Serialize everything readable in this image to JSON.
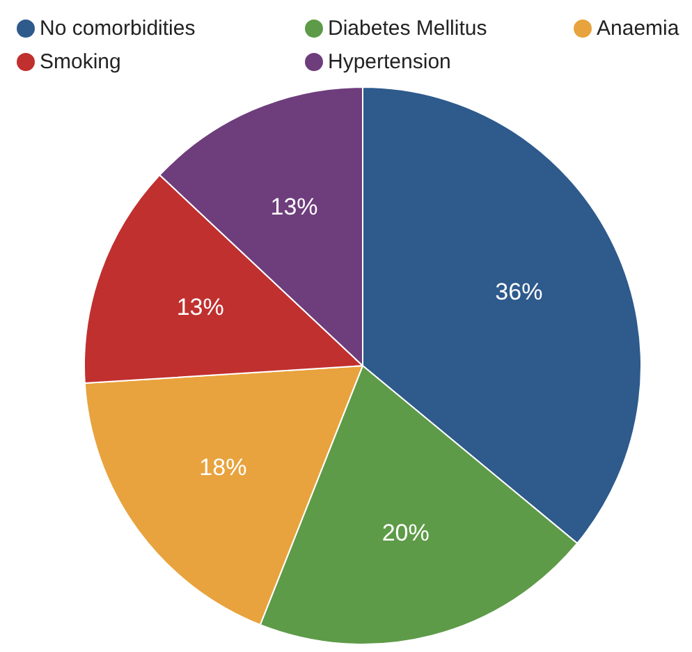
{
  "chart_data": {
    "type": "pie",
    "categories": [
      "No comorbidities",
      "Diabetes Mellitus",
      "Anaemia",
      "Smoking",
      "Hypertension"
    ],
    "values": [
      36,
      20,
      18,
      13,
      13
    ],
    "colors": [
      "#2e5a8c",
      "#5e9b48",
      "#e8a33e",
      "#c0302f",
      "#6e3d7c"
    ],
    "value_labels": [
      "36%",
      "20%",
      "18%",
      "13%",
      "13%"
    ],
    "legend": "top"
  }
}
